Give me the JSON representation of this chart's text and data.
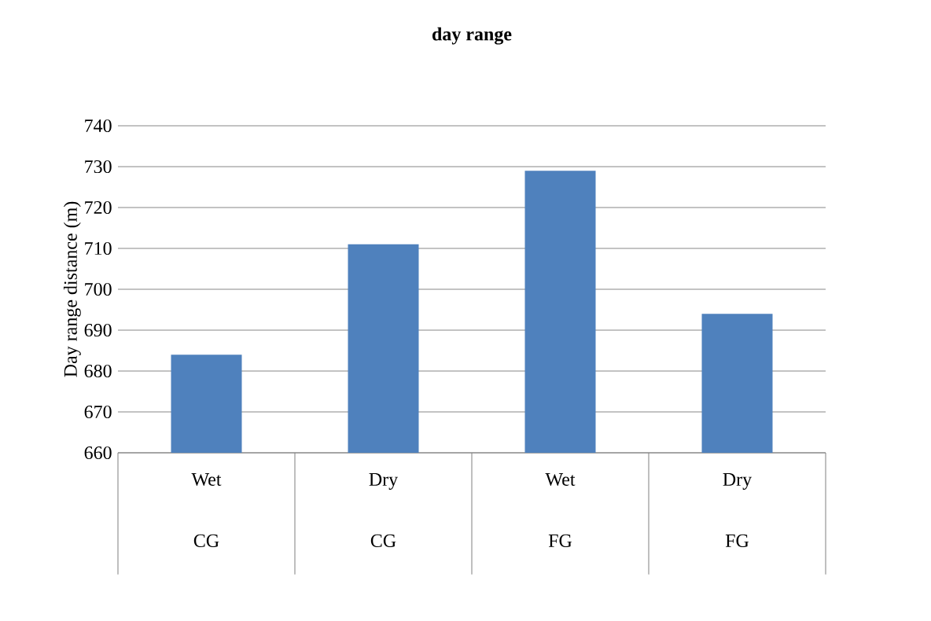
{
  "chart_data": {
    "type": "bar",
    "title": "day range",
    "ylabel": "Day range distance (m)",
    "categories": [
      "Wet CG",
      "Dry CG",
      "Wet FG",
      "Dry FG"
    ],
    "values": [
      684,
      711,
      729,
      694
    ],
    "color": "#4f81bd",
    "ylim": [
      660,
      740
    ],
    "yticks": [
      660,
      670,
      680,
      690,
      700,
      710,
      720,
      730,
      740
    ],
    "grid": "y"
  }
}
